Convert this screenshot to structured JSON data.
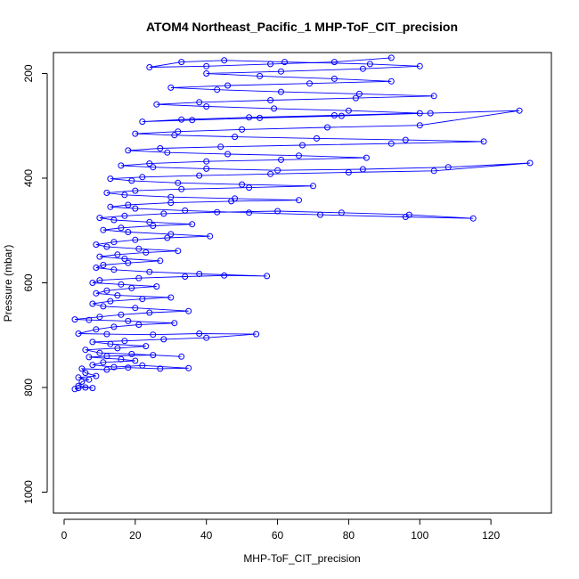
{
  "chart_data": {
    "type": "scatter",
    "title": "ATOM4 Northeast_Pacific_1 MHP-ToF_CIT_precision",
    "xlabel": "MHP-ToF_CIT_precision",
    "ylabel": "Pressure (mbar)",
    "xlim": [
      -3,
      137
    ],
    "ylim": [
      1040,
      160
    ],
    "y_reversed": true,
    "x_ticks": [
      0,
      20,
      40,
      60,
      80,
      100,
      120
    ],
    "y_ticks": [
      200,
      400,
      600,
      800,
      1000
    ],
    "grid": false,
    "legend": "none",
    "connected_points": true,
    "series_color": "#0000ff",
    "series": [
      {
        "points": [
          [
            3,
            803
          ],
          [
            4,
            801
          ],
          [
            6,
            800
          ],
          [
            8,
            801
          ],
          [
            4,
            797
          ],
          [
            5,
            789
          ],
          [
            7,
            785
          ],
          [
            4,
            781
          ],
          [
            9,
            778
          ],
          [
            6,
            772
          ],
          [
            5,
            764
          ],
          [
            12,
            766
          ],
          [
            18,
            762
          ],
          [
            27,
            764
          ],
          [
            35,
            763
          ],
          [
            22,
            758
          ],
          [
            14,
            761
          ],
          [
            8,
            757
          ],
          [
            11,
            752
          ],
          [
            20,
            749
          ],
          [
            16,
            746
          ],
          [
            7,
            742
          ],
          [
            12,
            740
          ],
          [
            25,
            738
          ],
          [
            33,
            741
          ],
          [
            19,
            736
          ],
          [
            10,
            734
          ],
          [
            6,
            728
          ],
          [
            15,
            725
          ],
          [
            23,
            721
          ],
          [
            13,
            717
          ],
          [
            8,
            713
          ],
          [
            17,
            711
          ],
          [
            28,
            708
          ],
          [
            40,
            705
          ],
          [
            54,
            698
          ],
          [
            38,
            697
          ],
          [
            25,
            699
          ],
          [
            12,
            698
          ],
          [
            4,
            697
          ],
          [
            9,
            689
          ],
          [
            14,
            684
          ],
          [
            21,
            680
          ],
          [
            31,
            677
          ],
          [
            18,
            673
          ],
          [
            7,
            671
          ],
          [
            3,
            670
          ],
          [
            10,
            665
          ],
          [
            16,
            661
          ],
          [
            24,
            657
          ],
          [
            35,
            654
          ],
          [
            20,
            648
          ],
          [
            11,
            645
          ],
          [
            8,
            640
          ],
          [
            13,
            635
          ],
          [
            22,
            631
          ],
          [
            30,
            628
          ],
          [
            15,
            624
          ],
          [
            9,
            620
          ],
          [
            12,
            615
          ],
          [
            19,
            610
          ],
          [
            26,
            607
          ],
          [
            16,
            603
          ],
          [
            8,
            600
          ],
          [
            10,
            595
          ],
          [
            21,
            591
          ],
          [
            34,
            588
          ],
          [
            45,
            586
          ],
          [
            57,
            587
          ],
          [
            38,
            583
          ],
          [
            24,
            579
          ],
          [
            14,
            575
          ],
          [
            9,
            571
          ],
          [
            11,
            566
          ],
          [
            18,
            562
          ],
          [
            27,
            558
          ],
          [
            17,
            554
          ],
          [
            10,
            550
          ],
          [
            15,
            546
          ],
          [
            23,
            542
          ],
          [
            32,
            539
          ],
          [
            21,
            535
          ],
          [
            12,
            531
          ],
          [
            9,
            527
          ],
          [
            14,
            522
          ],
          [
            20,
            518
          ],
          [
            29,
            514
          ],
          [
            41,
            511
          ],
          [
            30,
            507
          ],
          [
            18,
            503
          ],
          [
            11,
            499
          ],
          [
            16,
            495
          ],
          [
            25,
            491
          ],
          [
            36,
            488
          ],
          [
            24,
            484
          ],
          [
            14,
            480
          ],
          [
            10,
            476
          ],
          [
            17,
            472
          ],
          [
            28,
            468
          ],
          [
            43,
            465
          ],
          [
            60,
            463
          ],
          [
            78,
            466
          ],
          [
            97,
            470
          ],
          [
            115,
            477
          ],
          [
            96,
            474
          ],
          [
            72,
            470
          ],
          [
            52,
            466
          ],
          [
            34,
            462
          ],
          [
            20,
            458
          ],
          [
            13,
            455
          ],
          [
            18,
            451
          ],
          [
            30,
            447
          ],
          [
            47,
            444
          ],
          [
            66,
            442
          ],
          [
            48,
            439
          ],
          [
            30,
            436
          ],
          [
            17,
            432
          ],
          [
            12,
            428
          ],
          [
            20,
            424
          ],
          [
            33,
            421
          ],
          [
            52,
            418
          ],
          [
            70,
            415
          ],
          [
            50,
            412
          ],
          [
            32,
            409
          ],
          [
            19,
            405
          ],
          [
            13,
            401
          ],
          [
            22,
            398
          ],
          [
            38,
            395
          ],
          [
            58,
            392
          ],
          [
            80,
            389
          ],
          [
            104,
            386
          ],
          [
            131,
            371
          ],
          [
            108,
            379
          ],
          [
            84,
            383
          ],
          [
            60,
            385
          ],
          [
            40,
            382
          ],
          [
            25,
            379
          ],
          [
            16,
            376
          ],
          [
            24,
            372
          ],
          [
            40,
            368
          ],
          [
            61,
            365
          ],
          [
            85,
            361
          ],
          [
            66,
            357
          ],
          [
            46,
            354
          ],
          [
            29,
            351
          ],
          [
            18,
            347
          ],
          [
            27,
            343
          ],
          [
            44,
            340
          ],
          [
            67,
            337
          ],
          [
            92,
            334
          ],
          [
            118,
            330
          ],
          [
            96,
            327
          ],
          [
            71,
            324
          ],
          [
            48,
            321
          ],
          [
            31,
            318
          ],
          [
            20,
            315
          ],
          [
            32,
            311
          ],
          [
            50,
            307
          ],
          [
            74,
            303
          ],
          [
            100,
            299
          ],
          [
            128,
            271
          ],
          [
            103,
            276
          ],
          [
            78,
            281
          ],
          [
            55,
            285
          ],
          [
            36,
            289
          ],
          [
            22,
            292
          ],
          [
            33,
            288
          ],
          [
            52,
            284
          ],
          [
            76,
            280
          ],
          [
            100,
            276
          ],
          [
            80,
            271
          ],
          [
            59,
            267
          ],
          [
            40,
            263
          ],
          [
            26,
            259
          ],
          [
            38,
            255
          ],
          [
            58,
            251
          ],
          [
            82,
            247
          ],
          [
            104,
            243
          ],
          [
            83,
            239
          ],
          [
            61,
            235
          ],
          [
            43,
            231
          ],
          [
            30,
            227
          ],
          [
            46,
            223
          ],
          [
            69,
            219
          ],
          [
            92,
            215
          ],
          [
            76,
            210
          ],
          [
            55,
            205
          ],
          [
            40,
            200
          ],
          [
            61,
            196
          ],
          [
            84,
            191
          ],
          [
            100,
            186
          ],
          [
            86,
            182
          ],
          [
            62,
            178
          ],
          [
            45,
            175
          ],
          [
            33,
            178
          ],
          [
            24,
            188
          ],
          [
            40,
            186
          ],
          [
            58,
            182
          ],
          [
            76,
            178
          ],
          [
            92,
            170
          ]
        ]
      }
    ]
  }
}
